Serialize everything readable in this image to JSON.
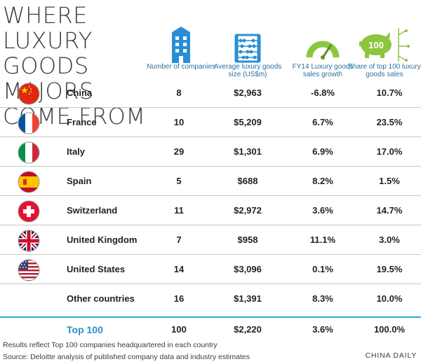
{
  "title": {
    "line1": "WHERE LUXURY",
    "line2": "GOODS MAJORS",
    "line3": "COME FROM"
  },
  "headers": {
    "companies": "Number of companies",
    "avg_size": "Average luxury goods size (US$m)",
    "growth": "FY14 Luxury goods sales growth",
    "share": "Share of top 100 luxury goods sales",
    "share_icon_text": "100"
  },
  "colors": {
    "accent": "#35a6d9",
    "icon_blue": "#2a8ed4",
    "gauge_green": "#8cc63f",
    "total_text": "#2d8fc9"
  },
  "chart_data": {
    "type": "table",
    "columns": [
      "Number of companies",
      "Average luxury goods size (US$m)",
      "FY14 Luxury goods sales growth",
      "Share of top 100 luxury goods sales"
    ],
    "rows": [
      {
        "country": "China",
        "flag": "china-flag",
        "companies": "8",
        "avg_size": "$2,963",
        "growth": "-6.8%",
        "share": "10.7%"
      },
      {
        "country": "France",
        "flag": "france-flag",
        "companies": "10",
        "avg_size": "$5,209",
        "growth": "6.7%",
        "share": "23.5%"
      },
      {
        "country": "Italy",
        "flag": "italy-flag",
        "companies": "29",
        "avg_size": "$1,301",
        "growth": "6.9%",
        "share": "17.0%"
      },
      {
        "country": "Spain",
        "flag": "spain-flag",
        "companies": "5",
        "avg_size": "$688",
        "growth": "8.2%",
        "share": "1.5%"
      },
      {
        "country": "Switzerland",
        "flag": "switzerland-flag",
        "companies": "11",
        "avg_size": "$2,972",
        "growth": "3.6%",
        "share": "14.7%"
      },
      {
        "country": "United Kingdom",
        "flag": "uk-flag",
        "companies": "7",
        "avg_size": "$958",
        "growth": "11.1%",
        "share": "3.0%"
      },
      {
        "country": "United States",
        "flag": "usa-flag",
        "companies": "14",
        "avg_size": "$3,096",
        "growth": "0.1%",
        "share": "19.5%"
      },
      {
        "country": "Other countries",
        "flag": "",
        "companies": "16",
        "avg_size": "$1,391",
        "growth": "8.3%",
        "share": "10.0%"
      }
    ],
    "total": {
      "country": "Top 100",
      "companies": "100",
      "avg_size": "$2,220",
      "growth": "3.6%",
      "share": "100.0%"
    }
  },
  "footer": {
    "note": "Results reflect Top 100 companies headquartered in each country",
    "source": "Source: Deloitte analysis of published company data and industry estimates",
    "credit": "CHINA DAILY"
  }
}
